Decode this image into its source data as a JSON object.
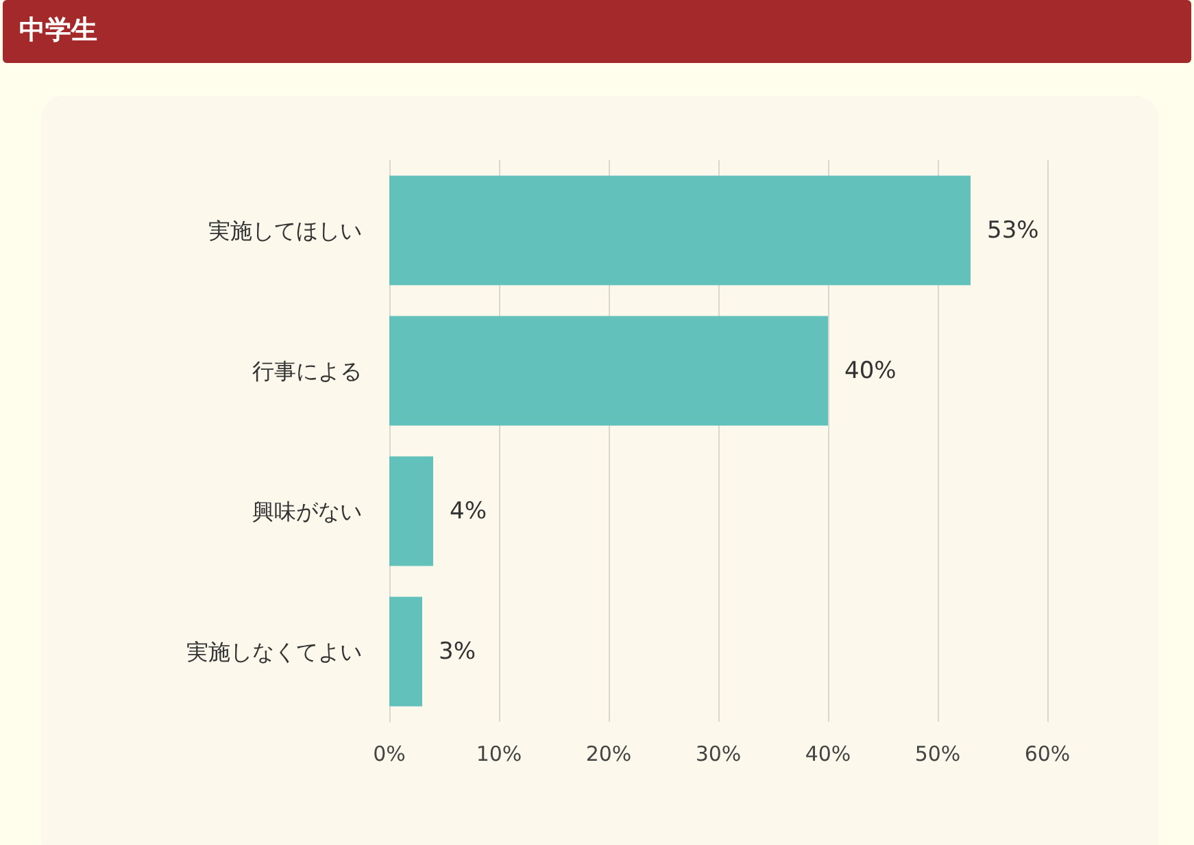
{
  "chart_data": {
    "type": "bar",
    "orientation": "horizontal",
    "title": "中学生",
    "categories": [
      "実施してほしい",
      "行事による",
      "興味がない",
      "実施しなくてよい"
    ],
    "values": [
      53,
      40,
      4,
      3
    ],
    "value_labels": [
      "53%",
      "40%",
      "4%",
      "3%"
    ],
    "color": "#62c1bb",
    "xlim": [
      0,
      60
    ],
    "xticks": [
      {
        "value": 0,
        "label": "0%"
      },
      {
        "value": 10,
        "label": "10%"
      },
      {
        "value": 20,
        "label": "20%"
      },
      {
        "value": 30,
        "label": "30%"
      },
      {
        "value": 40,
        "label": "40%"
      },
      {
        "value": 50,
        "label": "50%"
      },
      {
        "value": 60,
        "label": "60%"
      }
    ],
    "grid": "x"
  }
}
